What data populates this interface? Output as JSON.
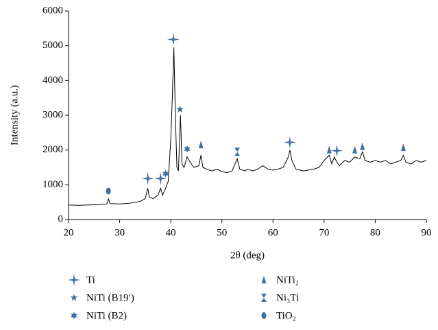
{
  "chart_data": {
    "type": "line",
    "xlabel": "2θ (deg)",
    "ylabel": "Intensity (a.u.)",
    "xlim": [
      20,
      90
    ],
    "xticks": [
      20,
      30,
      40,
      50,
      60,
      70,
      80,
      90
    ],
    "ylim": [
      0,
      6000
    ],
    "yticks": [
      0,
      1000,
      2000,
      3000,
      4000,
      5000,
      6000
    ],
    "x": [
      20,
      22,
      24,
      26,
      27.5,
      27.8,
      28.1,
      30,
      32,
      34,
      35,
      35.5,
      35.8,
      36.5,
      37.5,
      38,
      38.4,
      39,
      39.5,
      40,
      40.3,
      40.6,
      40.9,
      41.2,
      41.5,
      41.9,
      42.2,
      42.6,
      43.2,
      43.8,
      44.5,
      45.5,
      45.9,
      46.3,
      47,
      48,
      49,
      50,
      51,
      52,
      53,
      53.5,
      54.5,
      55,
      56,
      57,
      58,
      59,
      60,
      61,
      62,
      63,
      63.3,
      63.7,
      64.5,
      66,
      68,
      69,
      70,
      71,
      71.5,
      72,
      72.5,
      73,
      74,
      75,
      76,
      77,
      77.5,
      78,
      79,
      80,
      81,
      82,
      83,
      84,
      85,
      85.5,
      86,
      87,
      88,
      89,
      90
    ],
    "series": [
      {
        "color": "#000000",
        "values": [
          420,
          410,
          420,
          430,
          450,
          600,
          460,
          450,
          470,
          520,
          600,
          900,
          650,
          600,
          700,
          900,
          700,
          900,
          1100,
          2300,
          3500,
          4950,
          3000,
          1500,
          1400,
          3000,
          1600,
          1500,
          1800,
          1650,
          1500,
          1550,
          1850,
          1500,
          1450,
          1400,
          1450,
          1380,
          1350,
          1400,
          1750,
          1450,
          1400,
          1450,
          1400,
          1450,
          1550,
          1450,
          1420,
          1450,
          1500,
          1800,
          2000,
          1700,
          1450,
          1400,
          1450,
          1500,
          1700,
          1850,
          1600,
          1800,
          1650,
          1550,
          1700,
          1650,
          1800,
          1750,
          1950,
          1700,
          1650,
          1700,
          1650,
          1700,
          1600,
          1650,
          1700,
          1850,
          1650,
          1600,
          1700,
          1650,
          1700
        ]
      }
    ],
    "marker_color": "#3d6fa3",
    "phases": [
      {
        "name": "Ti",
        "marker": "cross4",
        "peaks": [
          {
            "x": 35.5,
            "y": 1180
          },
          {
            "x": 38,
            "y": 1180
          },
          {
            "x": 40.5,
            "y": 5180
          },
          {
            "x": 63.3,
            "y": 2220
          },
          {
            "x": 72.5,
            "y": 1980
          }
        ]
      },
      {
        "name": "NiTi (B19′)",
        "marker": "star5",
        "peaks": [
          {
            "x": 41.8,
            "y": 3170
          }
        ]
      },
      {
        "name": "NiTi (B2)",
        "marker": "star6",
        "peaks": [
          {
            "x": 39,
            "y": 1320
          },
          {
            "x": 43.2,
            "y": 2030
          }
        ]
      },
      {
        "name": "NiTi₂",
        "marker": "triangle",
        "peaks": [
          {
            "x": 45.9,
            "y": 2150
          },
          {
            "x": 71,
            "y": 2000
          },
          {
            "x": 76,
            "y": 2000
          },
          {
            "x": 77.5,
            "y": 2100
          },
          {
            "x": 85.5,
            "y": 2070
          }
        ]
      },
      {
        "name": "Ni₃Ti",
        "marker": "hourglass",
        "peaks": [
          {
            "x": 53,
            "y": 1950
          }
        ]
      },
      {
        "name": "TiO₂",
        "marker": "ellipse",
        "peaks": [
          {
            "x": 27.8,
            "y": 820
          }
        ]
      }
    ]
  }
}
